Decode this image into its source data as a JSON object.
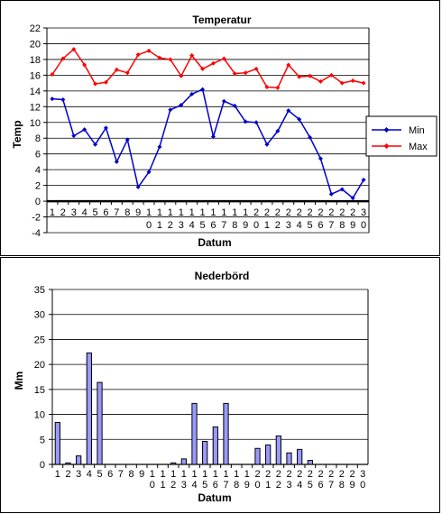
{
  "chart_data": [
    {
      "type": "line",
      "title": "Temperatur",
      "xlabel": "Datum",
      "ylabel": "Temp",
      "ylim": [
        -4,
        22
      ],
      "yticks": [
        -4,
        -2,
        0,
        2,
        4,
        6,
        8,
        10,
        12,
        14,
        16,
        18,
        20,
        22
      ],
      "categories": [
        "1",
        "2",
        "3",
        "4",
        "5",
        "6",
        "7",
        "8",
        "9",
        "10",
        "11",
        "12",
        "13",
        "14",
        "15",
        "16",
        "17",
        "18",
        "19",
        "20",
        "21",
        "22",
        "23",
        "24",
        "25",
        "26",
        "27",
        "28",
        "29",
        "30"
      ],
      "grid": "horizontal",
      "legend_position": "right",
      "series": [
        {
          "name": "Min",
          "color": "#0000cc",
          "values": [
            13.0,
            12.9,
            8.3,
            9.1,
            7.2,
            9.3,
            5.0,
            7.8,
            1.8,
            3.7,
            6.9,
            11.6,
            12.2,
            13.6,
            14.2,
            8.2,
            12.7,
            12.1,
            10.1,
            10.0,
            7.2,
            8.9,
            11.5,
            10.4,
            8.1,
            5.4,
            0.9,
            1.5,
            0.4,
            2.7
          ]
        },
        {
          "name": "Max",
          "color": "#ff0000",
          "values": [
            16.1,
            18.1,
            19.3,
            17.3,
            14.9,
            15.1,
            16.7,
            16.3,
            18.6,
            19.1,
            18.2,
            18.0,
            15.9,
            18.5,
            16.8,
            17.5,
            18.1,
            16.2,
            16.3,
            16.8,
            14.5,
            14.4,
            17.3,
            15.8,
            15.9,
            15.2,
            16.0,
            15.0,
            15.3,
            15.0
          ]
        }
      ]
    },
    {
      "type": "bar",
      "title": "Nederbörd",
      "xlabel": "Datum",
      "ylabel": "Mm",
      "ylim": [
        0,
        35
      ],
      "yticks": [
        0,
        5,
        10,
        15,
        20,
        25,
        30,
        35
      ],
      "categories": [
        "1",
        "2",
        "3",
        "4",
        "5",
        "6",
        "7",
        "8",
        "9",
        "10",
        "11",
        "12",
        "13",
        "14",
        "15",
        "16",
        "17",
        "18",
        "19",
        "20",
        "21",
        "22",
        "23",
        "24",
        "25",
        "26",
        "27",
        "28",
        "29",
        "30"
      ],
      "grid": "horizontal",
      "bar_color": "#9999ff",
      "values": [
        8.4,
        0.3,
        1.7,
        22.3,
        16.4,
        0,
        0,
        0,
        0,
        0,
        0,
        0.3,
        1.1,
        12.2,
        4.6,
        7.5,
        12.2,
        0,
        0,
        3.2,
        3.9,
        5.7,
        2.3,
        3.0,
        0.8,
        0,
        0,
        0,
        0,
        0
      ]
    }
  ]
}
